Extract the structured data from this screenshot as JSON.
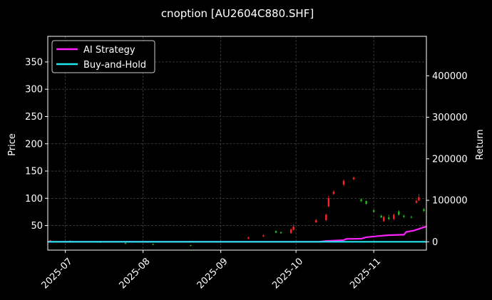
{
  "chart_data": {
    "type": "candlestick",
    "title": "cnoption [AU2604C880.SHF]",
    "ylabel": "Price",
    "ylabel_right": "Return",
    "grid": true,
    "legend_position": "top-left",
    "x_ticks": [
      "2025-07",
      "2025-08",
      "2025-09",
      "2025-10",
      "2025-11"
    ],
    "x_range": [
      "2025-06-24",
      "2025-11-22"
    ],
    "y_ticks": [
      50,
      100,
      150,
      200,
      250,
      300,
      350
    ],
    "ylim": [
      5,
      397
    ],
    "y_ticks_right": [
      0,
      100000,
      200000,
      300000,
      400000
    ],
    "ylim_right": [
      -20000,
      495000
    ],
    "colors": {
      "up": "#ff2020",
      "down": "#22bb22",
      "ai": "#ff22ff",
      "bh": "#22e5ee",
      "grid": "#555555"
    },
    "candles": [
      {
        "date": "2025-06-25",
        "o": 22,
        "c": 23,
        "h": 24,
        "l": 21
      },
      {
        "date": "2025-07-03",
        "o": 22,
        "c": 21,
        "h": 23,
        "l": 20
      },
      {
        "date": "2025-07-15",
        "o": 20,
        "c": 19,
        "h": 21,
        "l": 18
      },
      {
        "date": "2025-07-25",
        "o": 18,
        "c": 17,
        "h": 19,
        "l": 16
      },
      {
        "date": "2025-08-05",
        "o": 16,
        "c": 15,
        "h": 17,
        "l": 14
      },
      {
        "date": "2025-08-20",
        "o": 14,
        "c": 13,
        "h": 15,
        "l": 12
      },
      {
        "date": "2025-09-12",
        "o": 26,
        "c": 28,
        "h": 30,
        "l": 25
      },
      {
        "date": "2025-09-18",
        "o": 30,
        "c": 32,
        "h": 34,
        "l": 29
      },
      {
        "date": "2025-09-23",
        "o": 40,
        "c": 37,
        "h": 41,
        "l": 36
      },
      {
        "date": "2025-09-25",
        "o": 38,
        "c": 36,
        "h": 39,
        "l": 35
      },
      {
        "date": "2025-09-29",
        "o": 36,
        "c": 43,
        "h": 45,
        "l": 35
      },
      {
        "date": "2025-09-30",
        "o": 42,
        "c": 48,
        "h": 52,
        "l": 41
      },
      {
        "date": "2025-10-09",
        "o": 56,
        "c": 60,
        "h": 62,
        "l": 55
      },
      {
        "date": "2025-10-13",
        "o": 60,
        "c": 70,
        "h": 72,
        "l": 58
      },
      {
        "date": "2025-10-14",
        "o": 85,
        "c": 100,
        "h": 105,
        "l": 84
      },
      {
        "date": "2025-10-16",
        "o": 108,
        "c": 112,
        "h": 115,
        "l": 106
      },
      {
        "date": "2025-10-20",
        "o": 125,
        "c": 132,
        "h": 135,
        "l": 122
      },
      {
        "date": "2025-10-24",
        "o": 135,
        "c": 138,
        "h": 140,
        "l": 133
      },
      {
        "date": "2025-10-27",
        "o": 98,
        "c": 95,
        "h": 100,
        "l": 93
      },
      {
        "date": "2025-10-29",
        "o": 95,
        "c": 90,
        "h": 96,
        "l": 88
      },
      {
        "date": "2025-11-01",
        "o": 78,
        "c": 75,
        "h": 80,
        "l": 74
      },
      {
        "date": "2025-11-04",
        "o": 68,
        "c": 65,
        "h": 70,
        "l": 64
      },
      {
        "date": "2025-11-05",
        "o": 58,
        "c": 66,
        "h": 68,
        "l": 57
      },
      {
        "date": "2025-11-07",
        "o": 65,
        "c": 62,
        "h": 70,
        "l": 60
      },
      {
        "date": "2025-11-09",
        "o": 62,
        "c": 70,
        "h": 72,
        "l": 60
      },
      {
        "date": "2025-11-11",
        "o": 76,
        "c": 70,
        "h": 78,
        "l": 68
      },
      {
        "date": "2025-11-13",
        "o": 68,
        "c": 66,
        "h": 70,
        "l": 64
      },
      {
        "date": "2025-11-16",
        "o": 66,
        "c": 65,
        "h": 68,
        "l": 63
      },
      {
        "date": "2025-11-18",
        "o": 92,
        "c": 95,
        "h": 98,
        "l": 90
      },
      {
        "date": "2025-11-19",
        "o": 96,
        "c": 102,
        "h": 108,
        "l": 95
      },
      {
        "date": "2025-11-21",
        "o": 80,
        "c": 77,
        "h": 82,
        "l": 75
      }
    ],
    "series": [
      {
        "name": "AI Strategy",
        "color": "#ff22ff",
        "points": [
          [
            "2025-06-24",
            0
          ],
          [
            "2025-10-10",
            0
          ],
          [
            "2025-10-13",
            2000
          ],
          [
            "2025-10-20",
            4000
          ],
          [
            "2025-10-21",
            7000
          ],
          [
            "2025-10-27",
            7500
          ],
          [
            "2025-10-29",
            11000
          ],
          [
            "2025-11-03",
            14000
          ],
          [
            "2025-11-07",
            16000
          ],
          [
            "2025-11-13",
            17000
          ],
          [
            "2025-11-14",
            24000
          ],
          [
            "2025-11-17",
            27000
          ],
          [
            "2025-11-20",
            33000
          ],
          [
            "2025-11-22",
            37000
          ]
        ]
      },
      {
        "name": "Buy-and-Hold",
        "color": "#22e5ee",
        "points": [
          [
            "2025-06-24",
            0
          ],
          [
            "2025-11-22",
            0
          ]
        ]
      }
    ]
  }
}
